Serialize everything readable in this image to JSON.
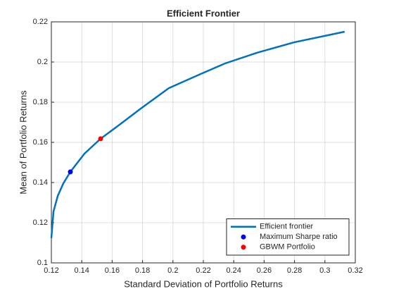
{
  "chart_data": {
    "type": "line",
    "title": "Efficient Frontier",
    "xlabel": "Standard Deviation of Portfolio Returns",
    "ylabel": "Mean of Portfolio Returns",
    "xlim": [
      0.12,
      0.32
    ],
    "xticks": [
      0.12,
      0.14,
      0.16,
      0.18,
      0.2,
      0.22,
      0.24,
      0.26,
      0.28,
      0.3,
      0.32
    ],
    "ylim": [
      0.1,
      0.22
    ],
    "yticks": [
      0.1,
      0.12,
      0.14,
      0.16,
      0.18,
      0.2,
      0.22
    ],
    "grid": true,
    "legend": "southeast",
    "series": [
      {
        "name": "Efficient frontier",
        "type": "line",
        "color": "#0072bd",
        "x": [
          0.12,
          0.1214,
          0.1242,
          0.1279,
          0.1325,
          0.1418,
          0.1524,
          0.1649,
          0.1788,
          0.1973,
          0.2181,
          0.2343,
          0.2552,
          0.2797,
          0.313
        ],
        "values": [
          0.1123,
          0.1256,
          0.1333,
          0.1396,
          0.1453,
          0.1544,
          0.1618,
          0.1688,
          0.1768,
          0.187,
          0.194,
          0.1993,
          0.2046,
          0.2098,
          0.2151
        ]
      },
      {
        "name": "Maximum Sharpe ratio",
        "type": "scatter",
        "color": "#0000ff",
        "x": [
          0.1325
        ],
        "values": [
          0.1453
        ]
      },
      {
        "name": "GBWM Portfolio",
        "type": "scatter",
        "color": "#ff0000",
        "x": [
          0.1524
        ],
        "values": [
          0.1618
        ]
      }
    ]
  }
}
